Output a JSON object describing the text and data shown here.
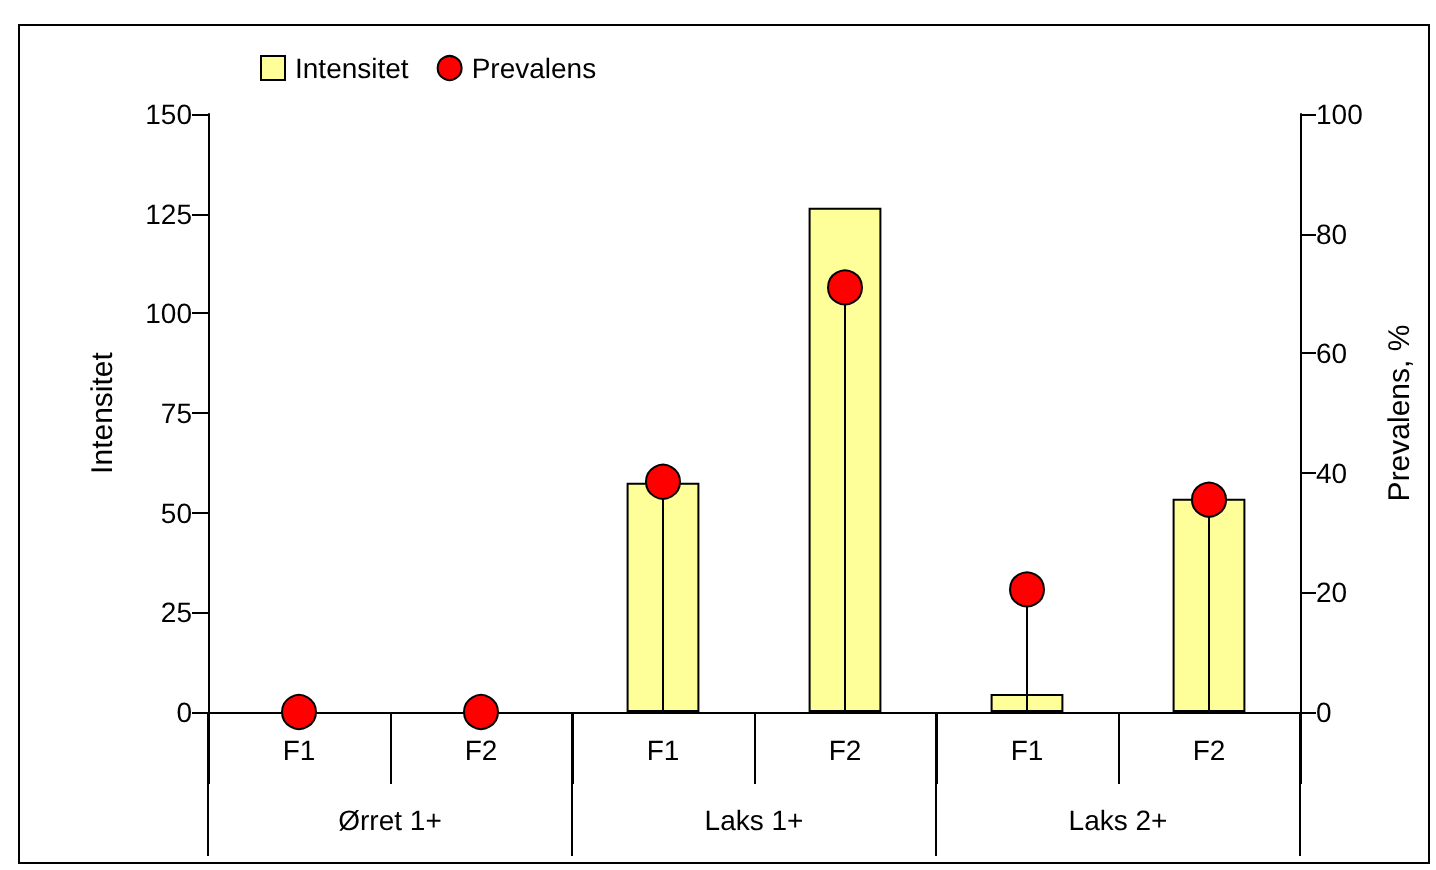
{
  "chart_data": {
    "type": "bar",
    "categories": [
      "F1",
      "F2",
      "F1",
      "F2",
      "F1",
      "F2"
    ],
    "annotations": [
      "Ørret 1+",
      "Laks 1+",
      "Laks 2+"
    ],
    "ylabel": "Intensitet",
    "y2label": "Prevalens, %",
    "ylim": [
      0,
      150
    ],
    "yticks": [
      0,
      25,
      50,
      75,
      100,
      125,
      150
    ],
    "y2lim": [
      0,
      100
    ],
    "y2ticks": [
      0,
      20,
      40,
      60,
      80,
      100
    ],
    "legend": "top",
    "series": [
      {
        "name": "Intensitet",
        "color": "#ffff99",
        "values": [
          0,
          0,
          57.5,
          126.5,
          4.5,
          53.5
        ]
      },
      {
        "name": "Prevalens",
        "type": "lollipop",
        "axis": "y2",
        "color": "#ff0000",
        "marker": "circle",
        "values": [
          0,
          0,
          38.5,
          71,
          20.5,
          35.5
        ]
      }
    ]
  }
}
